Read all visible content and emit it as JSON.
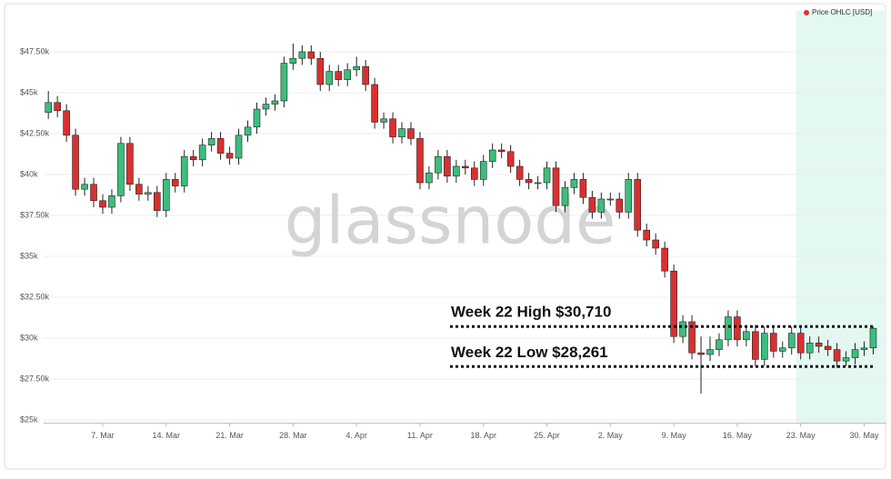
{
  "chart_data": {
    "type": "candlestick",
    "watermark": "glassnode",
    "legend": "top-right",
    "grid": true,
    "highlight_from": "23. May",
    "highlight_color": "#e3f8f1",
    "up_color": "#3dbd7d",
    "down_color": "#d9302f",
    "categories": [
      null,
      null,
      null,
      null,
      null,
      null,
      "7. Mar",
      null,
      null,
      null,
      null,
      null,
      null,
      "14. Mar",
      null,
      null,
      null,
      null,
      null,
      null,
      "21. Mar",
      null,
      null,
      null,
      null,
      null,
      null,
      "28. Mar",
      null,
      null,
      null,
      null,
      null,
      null,
      "4. Apr",
      null,
      null,
      null,
      null,
      null,
      null,
      "11. Apr",
      null,
      null,
      null,
      null,
      null,
      null,
      "18. Apr",
      null,
      null,
      null,
      null,
      null,
      null,
      "25. Apr",
      null,
      null,
      null,
      null,
      null,
      null,
      "2. May",
      null,
      null,
      null,
      null,
      null,
      null,
      "9. May",
      null,
      null,
      null,
      null,
      null,
      null,
      "16. May",
      null,
      null,
      null,
      null,
      null,
      null,
      "23. May",
      null,
      null,
      null,
      null,
      null,
      null,
      "30. May",
      null
    ],
    "series": [
      {
        "name": "Price OHLC [USD]",
        "color": "#e0302e",
        "open": [
          43800,
          44400,
          43900,
          42400,
          39100,
          39400,
          38400,
          38000,
          38700,
          41900,
          39400,
          38800,
          38900,
          37800,
          39700,
          39300,
          41100,
          40900,
          41800,
          42200,
          41300,
          41000,
          42400,
          42900,
          44000,
          44300,
          44500,
          46800,
          47100,
          47500,
          47100,
          45500,
          46300,
          45800,
          46400,
          46600,
          45500,
          43200,
          43400,
          42300,
          42800,
          42200,
          39500,
          40100,
          41100,
          39900,
          40500,
          40400,
          39700,
          40800,
          41500,
          41400,
          40500,
          39700,
          39500,
          39500,
          40400,
          38100,
          39200,
          39700,
          38600,
          37700,
          38500,
          38500,
          37700,
          39700,
          36600,
          36000,
          35500,
          34100,
          30100,
          31000,
          29100,
          29000,
          29300,
          29900,
          31300,
          29900,
          30400,
          28700,
          30300,
          29200,
          29400,
          30300,
          29100,
          29700,
          29500,
          29300,
          28600,
          28800,
          29300,
          29400
        ],
        "high": [
          45100,
          44800,
          44300,
          42800,
          39800,
          39800,
          38800,
          39100,
          42300,
          42300,
          39800,
          39300,
          39300,
          40100,
          40100,
          41500,
          41500,
          42200,
          42600,
          42600,
          41700,
          42800,
          43300,
          44400,
          44700,
          44900,
          47200,
          48000,
          47900,
          47900,
          47500,
          46700,
          46700,
          46800,
          47200,
          47000,
          45900,
          43800,
          43800,
          43200,
          43200,
          42600,
          40500,
          41500,
          41500,
          40900,
          40900,
          40800,
          41200,
          41900,
          41900,
          41800,
          40900,
          40100,
          39900,
          40800,
          40800,
          39600,
          40100,
          40100,
          39000,
          38900,
          38900,
          38900,
          40100,
          40100,
          37000,
          36400,
          35900,
          34500,
          31400,
          31400,
          30100,
          30100,
          30300,
          31700,
          31700,
          30800,
          30800,
          30700,
          30700,
          29800,
          30700,
          30700,
          30100,
          30100,
          29900,
          29700,
          29200,
          29700,
          29800,
          30700
        ],
        "low": [
          43400,
          43500,
          42000,
          38700,
          38700,
          38000,
          37600,
          37600,
          38300,
          39000,
          38400,
          38400,
          37400,
          37400,
          38900,
          38900,
          40500,
          40500,
          41400,
          40900,
          40600,
          40600,
          42000,
          42500,
          43600,
          43900,
          44100,
          46400,
          46700,
          46700,
          45100,
          45100,
          45400,
          45400,
          46000,
          45100,
          42800,
          42800,
          41900,
          41900,
          41800,
          39100,
          39100,
          39700,
          39500,
          39500,
          40000,
          39300,
          39300,
          40400,
          41000,
          40100,
          39300,
          39100,
          39100,
          39100,
          37700,
          37700,
          38800,
          38200,
          37300,
          37300,
          38100,
          37300,
          37300,
          36200,
          35600,
          35100,
          33700,
          29700,
          29700,
          28700,
          26600,
          28600,
          28900,
          29500,
          29500,
          29500,
          28300,
          28300,
          28800,
          28800,
          29000,
          28700,
          28700,
          29100,
          28900,
          28200,
          28300,
          28400,
          28900,
          29000
        ],
        "close": [
          44400,
          43900,
          42400,
          39100,
          39400,
          38400,
          38000,
          38700,
          41900,
          39400,
          38800,
          38900,
          37800,
          39700,
          39300,
          41100,
          40900,
          41800,
          42200,
          41300,
          41000,
          42400,
          42900,
          44000,
          44300,
          44500,
          46800,
          47100,
          47500,
          47100,
          45500,
          46300,
          45800,
          46400,
          46600,
          45500,
          43200,
          43400,
          42300,
          42800,
          42200,
          39500,
          40100,
          41100,
          39900,
          40500,
          40400,
          39700,
          40800,
          41500,
          41400,
          40500,
          39700,
          39500,
          39500,
          40400,
          38100,
          39200,
          39700,
          38600,
          37700,
          38500,
          38500,
          37700,
          39700,
          36600,
          36000,
          35500,
          34100,
          30100,
          31000,
          29100,
          29000,
          29300,
          29900,
          31300,
          29900,
          30400,
          28700,
          30300,
          29200,
          29400,
          30300,
          29100,
          29700,
          29500,
          29300,
          28600,
          28800,
          29300,
          29400,
          30600
        ]
      }
    ],
    "ylim": [
      24800,
      49800
    ],
    "yticks": [
      {
        "value": 25000,
        "label": "$25k"
      },
      {
        "value": 27500,
        "label": "$27.50k"
      },
      {
        "value": 30000,
        "label": "$30k"
      },
      {
        "value": 32500,
        "label": "$32.50k"
      },
      {
        "value": 35000,
        "label": "$35k"
      },
      {
        "value": 37500,
        "label": "$37.50k"
      },
      {
        "value": 40000,
        "label": "$40k"
      },
      {
        "value": 42500,
        "label": "$42.50k"
      },
      {
        "value": 45000,
        "label": "$45k"
      },
      {
        "value": 47500,
        "label": "$47.50k"
      }
    ],
    "annotations": [
      {
        "label": "Week 22 High $30,710",
        "value": 30710
      },
      {
        "label": "Week 22 Low $28,261",
        "value": 28261
      }
    ]
  }
}
